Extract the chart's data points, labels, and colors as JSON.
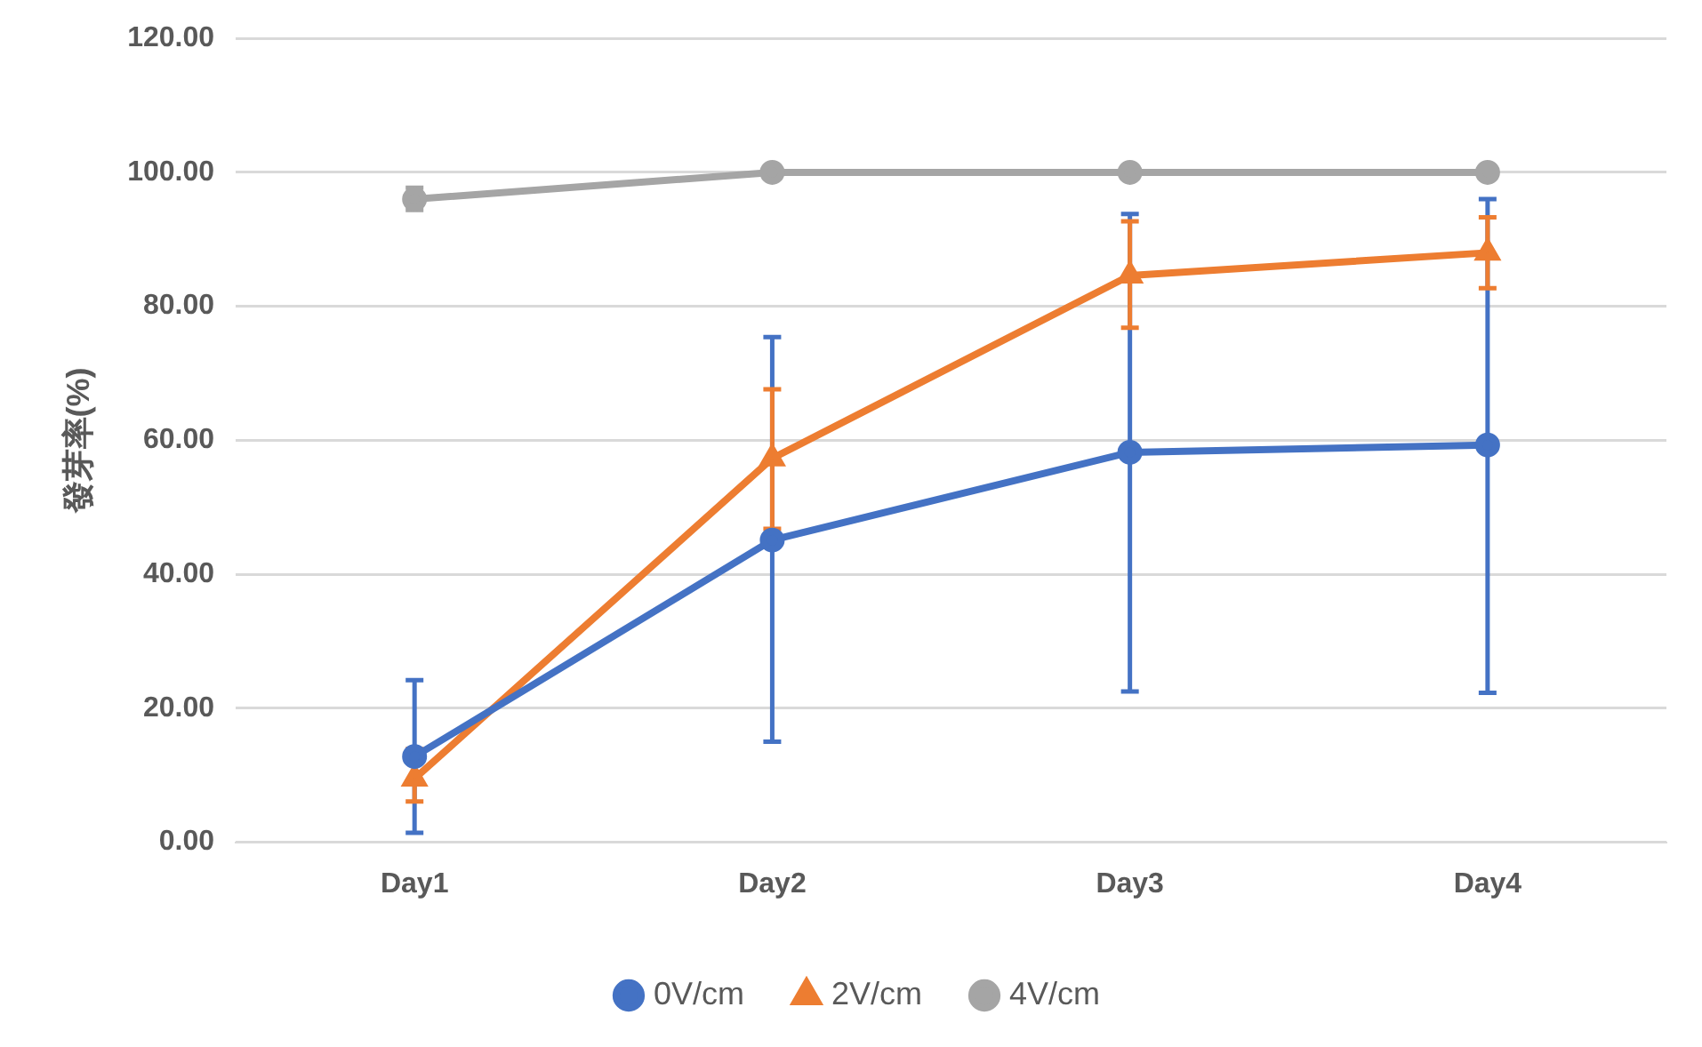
{
  "chart_data": {
    "type": "line",
    "ylabel": "發芽率(%)",
    "categories": [
      "Day1",
      "Day2",
      "Day3",
      "Day4"
    ],
    "ylim": [
      0,
      120
    ],
    "yticks": [
      {
        "value": 0,
        "label": "0.00"
      },
      {
        "value": 20,
        "label": "20.00"
      },
      {
        "value": 40,
        "label": "40.00"
      },
      {
        "value": 60,
        "label": "60.00"
      },
      {
        "value": 80,
        "label": "80.00"
      },
      {
        "value": 100,
        "label": "100.00"
      },
      {
        "value": 120,
        "label": "120.00"
      }
    ],
    "grid": "y",
    "legend": "bottom",
    "line_style": "solid",
    "series": [
      {
        "name": "0V/cm",
        "color": "#4472c4",
        "marker": "circle",
        "values": [
          12.8,
          45.1,
          58.2,
          59.3
        ],
        "errors": [
          [
            1.4,
            24.2
          ],
          [
            15,
            75.4
          ],
          [
            22.5,
            93.8
          ],
          [
            22.3,
            96
          ]
        ]
      },
      {
        "name": "2V/cm",
        "color": "#ed7d31",
        "marker": "triangle",
        "values": [
          9.5,
          57.3,
          84.6,
          88
        ],
        "errors": [
          [
            6.1,
            13.9
          ],
          [
            46.8,
            67.6
          ],
          [
            76.8,
            92.7
          ],
          [
            82.7,
            93.3
          ]
        ]
      },
      {
        "name": "4V/cm",
        "color": "#a5a5a5",
        "marker": "circle",
        "values": [
          96,
          100,
          100,
          100
        ],
        "errors": [
          [
            94.4,
            97.7
          ],
          null,
          null,
          null
        ]
      }
    ]
  }
}
